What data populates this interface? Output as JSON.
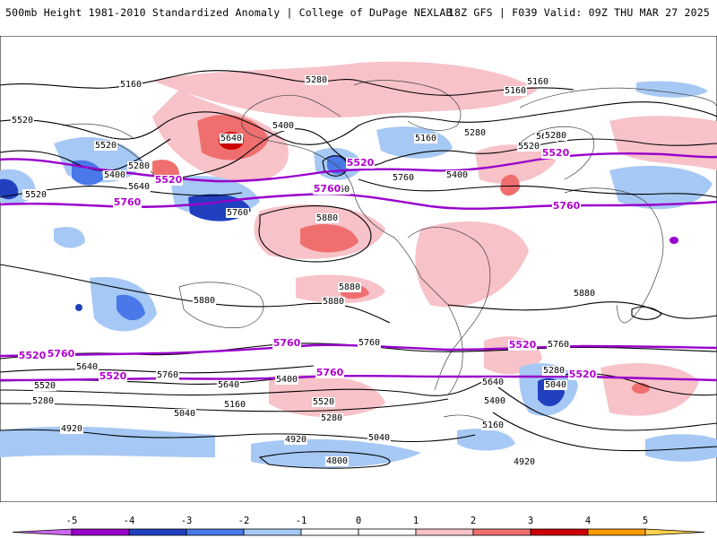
{
  "header": {
    "title": "500mb Height 1981-2010 Standardized Anomaly | College of DuPage NEXLAB",
    "run_info": "18Z GFS | F039 Valid: 09Z THU MAR 27 2025"
  },
  "contour_labels": {
    "black": [
      "5160",
      "5280",
      "5160",
      "5160",
      "5520",
      "5640",
      "5400",
      "5280",
      "5400",
      "5640",
      "5520",
      "5760",
      "5760",
      "5760",
      "5160",
      "5280",
      "5520",
      "5640",
      "5280",
      "5520",
      "5400",
      "5760",
      "5880",
      "5880",
      "5880",
      "5880",
      "5880",
      "5760",
      "5640",
      "5520",
      "5280",
      "5760",
      "5640",
      "5400",
      "5520",
      "5280",
      "5040",
      "4920",
      "5160",
      "4920",
      "5040",
      "4800",
      "5760",
      "5640",
      "5520",
      "5280",
      "5040",
      "5400",
      "5160",
      "4920"
    ],
    "purple": [
      "5520",
      "5760",
      "5520",
      "5760",
      "5520",
      "5760",
      "5760",
      "5520",
      "5760",
      "5520",
      "5760",
      "5520",
      "5520"
    ]
  },
  "colorbar": {
    "ticks": [
      "-5",
      "-4",
      "-3",
      "-2",
      "-1",
      "0",
      "1",
      "2",
      "3",
      "4",
      "5"
    ],
    "colors": [
      "#cc66ee",
      "#9900cc",
      "#2040c0",
      "#4a78e8",
      "#a6c8f5",
      "#ffffff",
      "#ffffff",
      "#f7c2c8",
      "#ef6f6f",
      "#cc0000",
      "#ff9900",
      "#ffd24d"
    ]
  }
}
